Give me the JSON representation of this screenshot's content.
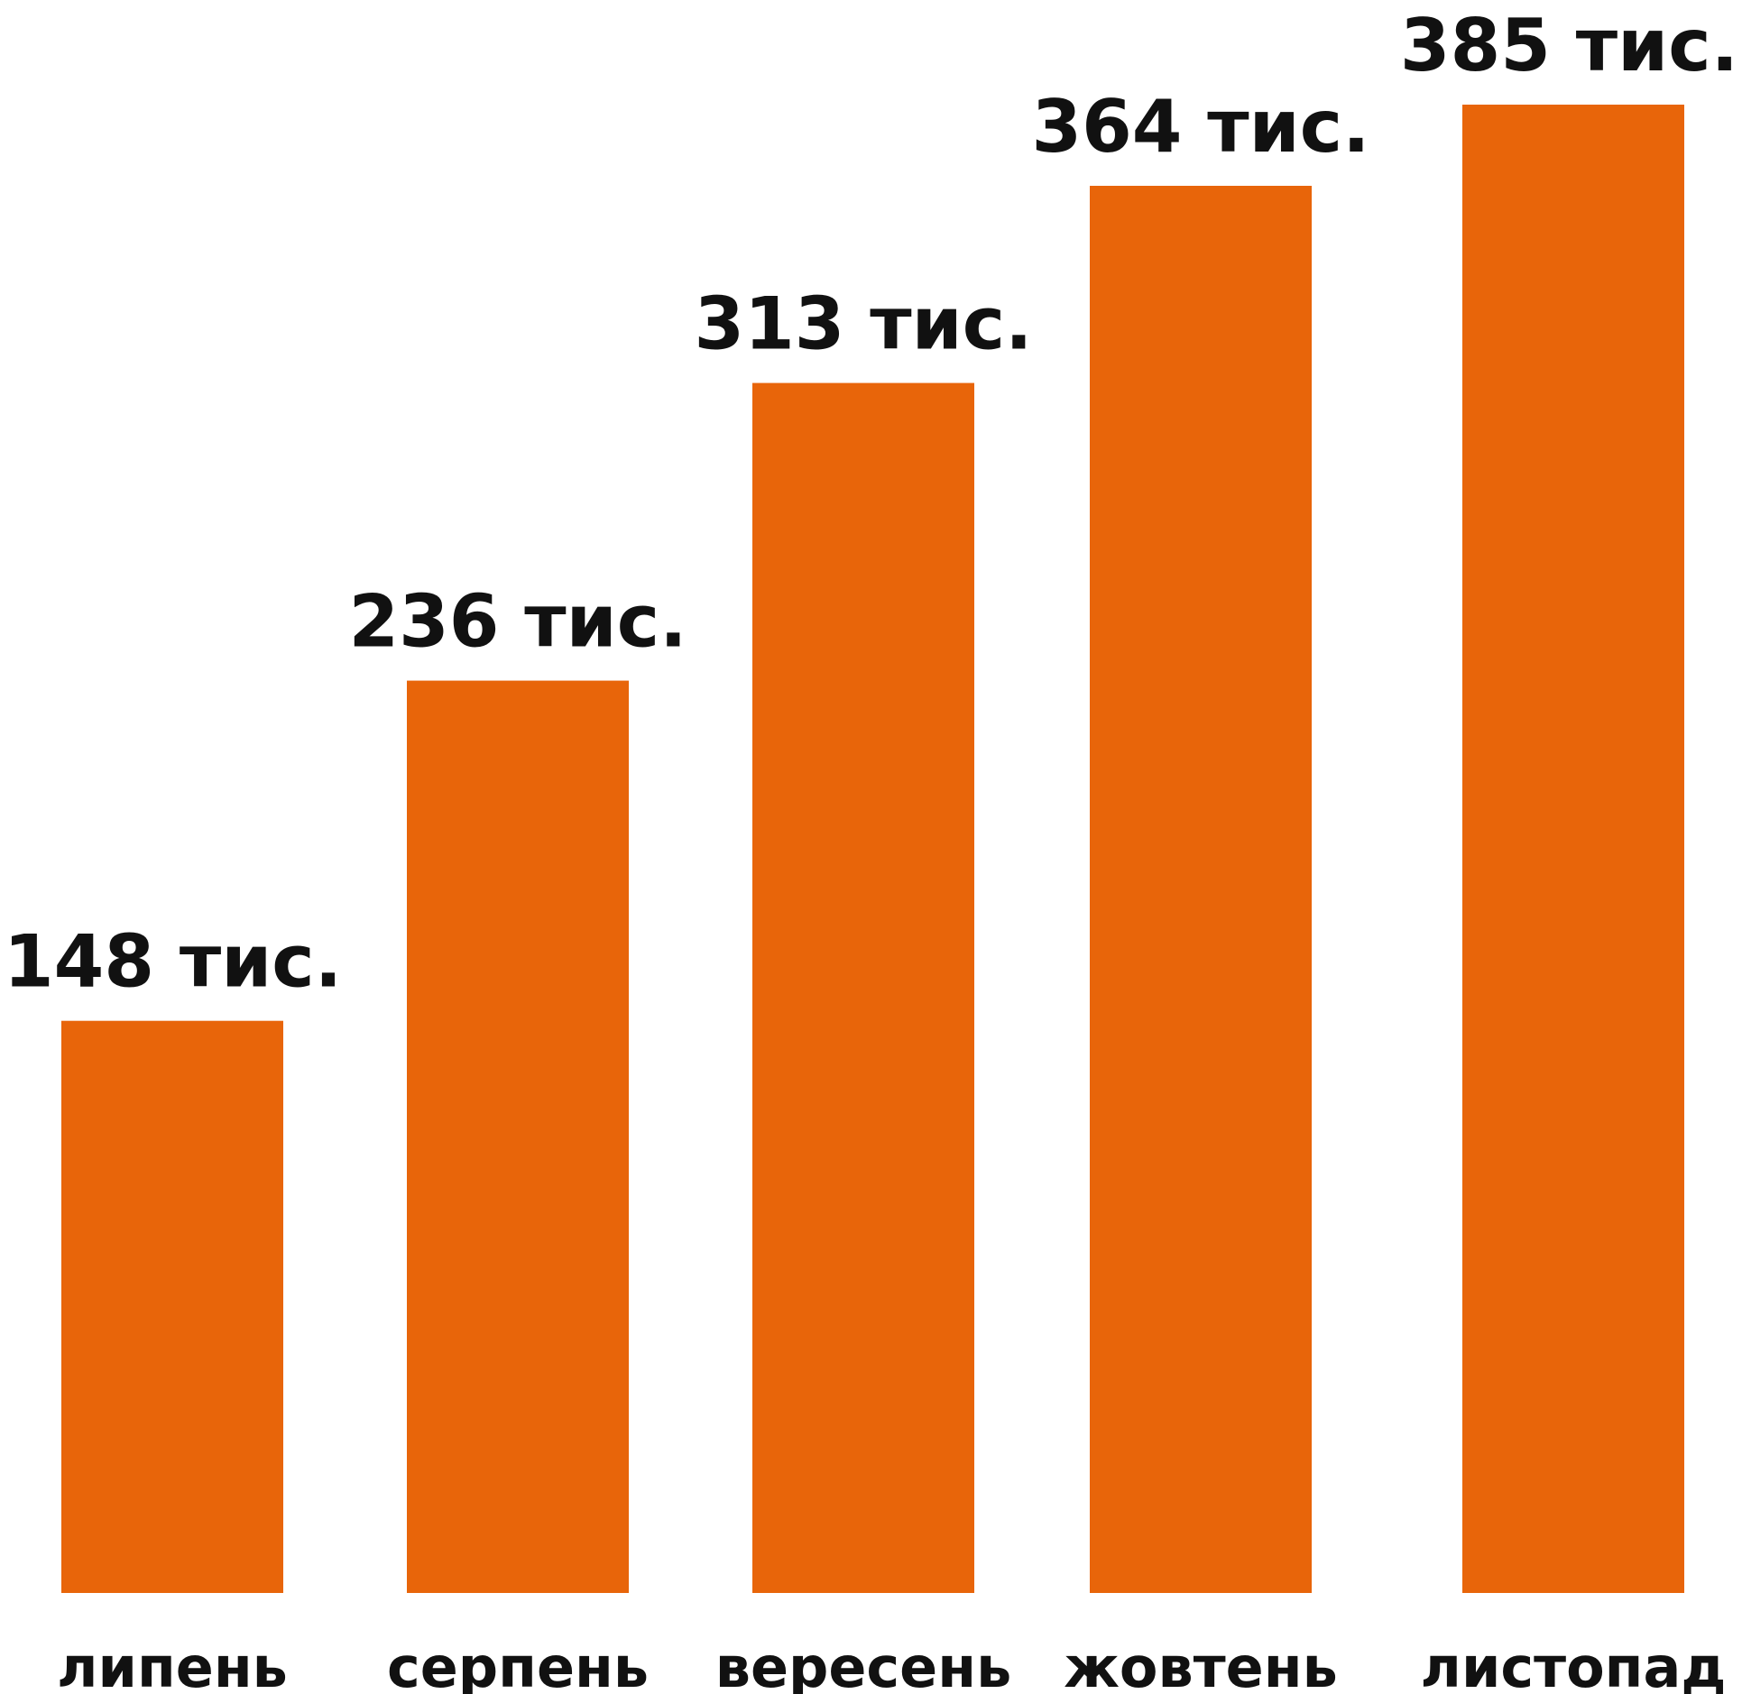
{
  "chart_data": {
    "type": "bar",
    "title": "",
    "xlabel": "",
    "ylabel": "",
    "categories": [
      "липень",
      "серпень",
      "вересень",
      "жовтень",
      "листопад"
    ],
    "values": [
      148,
      236,
      313,
      364,
      385
    ],
    "value_labels": [
      "148 тис.",
      "236 тис.",
      "313 тис.",
      "364 тис.",
      "385 тис."
    ],
    "ylim": [
      0,
      385
    ],
    "bar_color": "#E8650A",
    "grid": false,
    "legend": "none"
  }
}
